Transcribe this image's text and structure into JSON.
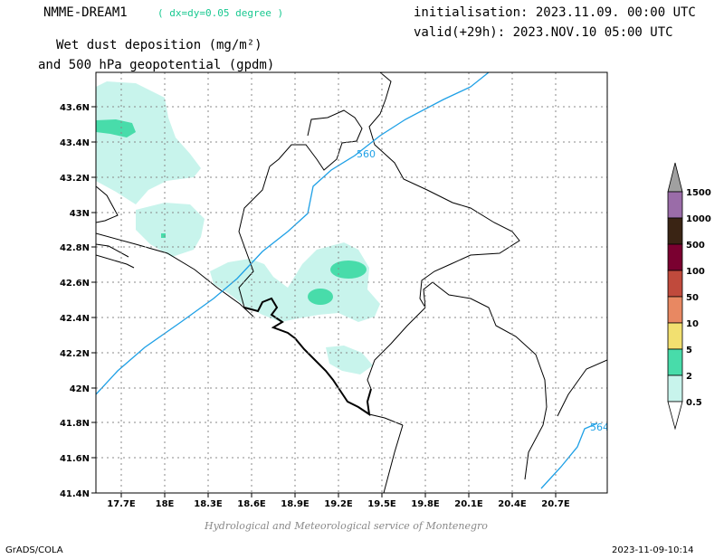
{
  "header": {
    "model": "NMME-DREAM1",
    "resolution": "( dx=dy=0.05 degree )",
    "field_line1": "Wet dust deposition (mg/m²)",
    "field_line2": "and 500 hPa geopotential (gpdm)",
    "init": "initialisation: 2023.11.09. 00:00 UTC",
    "valid": "valid(+29h): 2023.NOV.10 05:00 UTC"
  },
  "footer": {
    "credit": "Hydrological and Meteorological service of Montenegro",
    "software": "GrADS/COLA",
    "timestamp": "2023-11-09-10:14"
  },
  "map": {
    "lon_range": [
      17.5,
      21.1
    ],
    "lat_range": [
      41.4,
      43.8
    ],
    "lon_ticks": [
      "17.7E",
      "18E",
      "18.3E",
      "18.6E",
      "18.9E",
      "19.2E",
      "19.5E",
      "19.8E",
      "20.1E",
      "20.4E",
      "20.7E"
    ],
    "lat_ticks": [
      "41.4N",
      "41.6N",
      "41.8N",
      "42N",
      "42.2N",
      "42.4N",
      "42.6N",
      "42.8N",
      "43N",
      "43.2N",
      "43.4N",
      "43.6N"
    ],
    "grid": true,
    "contours": [
      {
        "label": "560",
        "color": "#1ea0e6"
      },
      {
        "label": "564",
        "color": "#1ea0e6"
      }
    ]
  },
  "legend": {
    "labels": [
      "1500",
      "1000",
      "500",
      "100",
      "50",
      "10",
      "5",
      "2",
      "0.5"
    ],
    "colors": [
      "#a0a0a0",
      "#9a6ca8",
      "#3a2414",
      "#7a0030",
      "#c04a3c",
      "#e88862",
      "#f2e070",
      "#48dcaa",
      "#c8f4ec"
    ]
  }
}
